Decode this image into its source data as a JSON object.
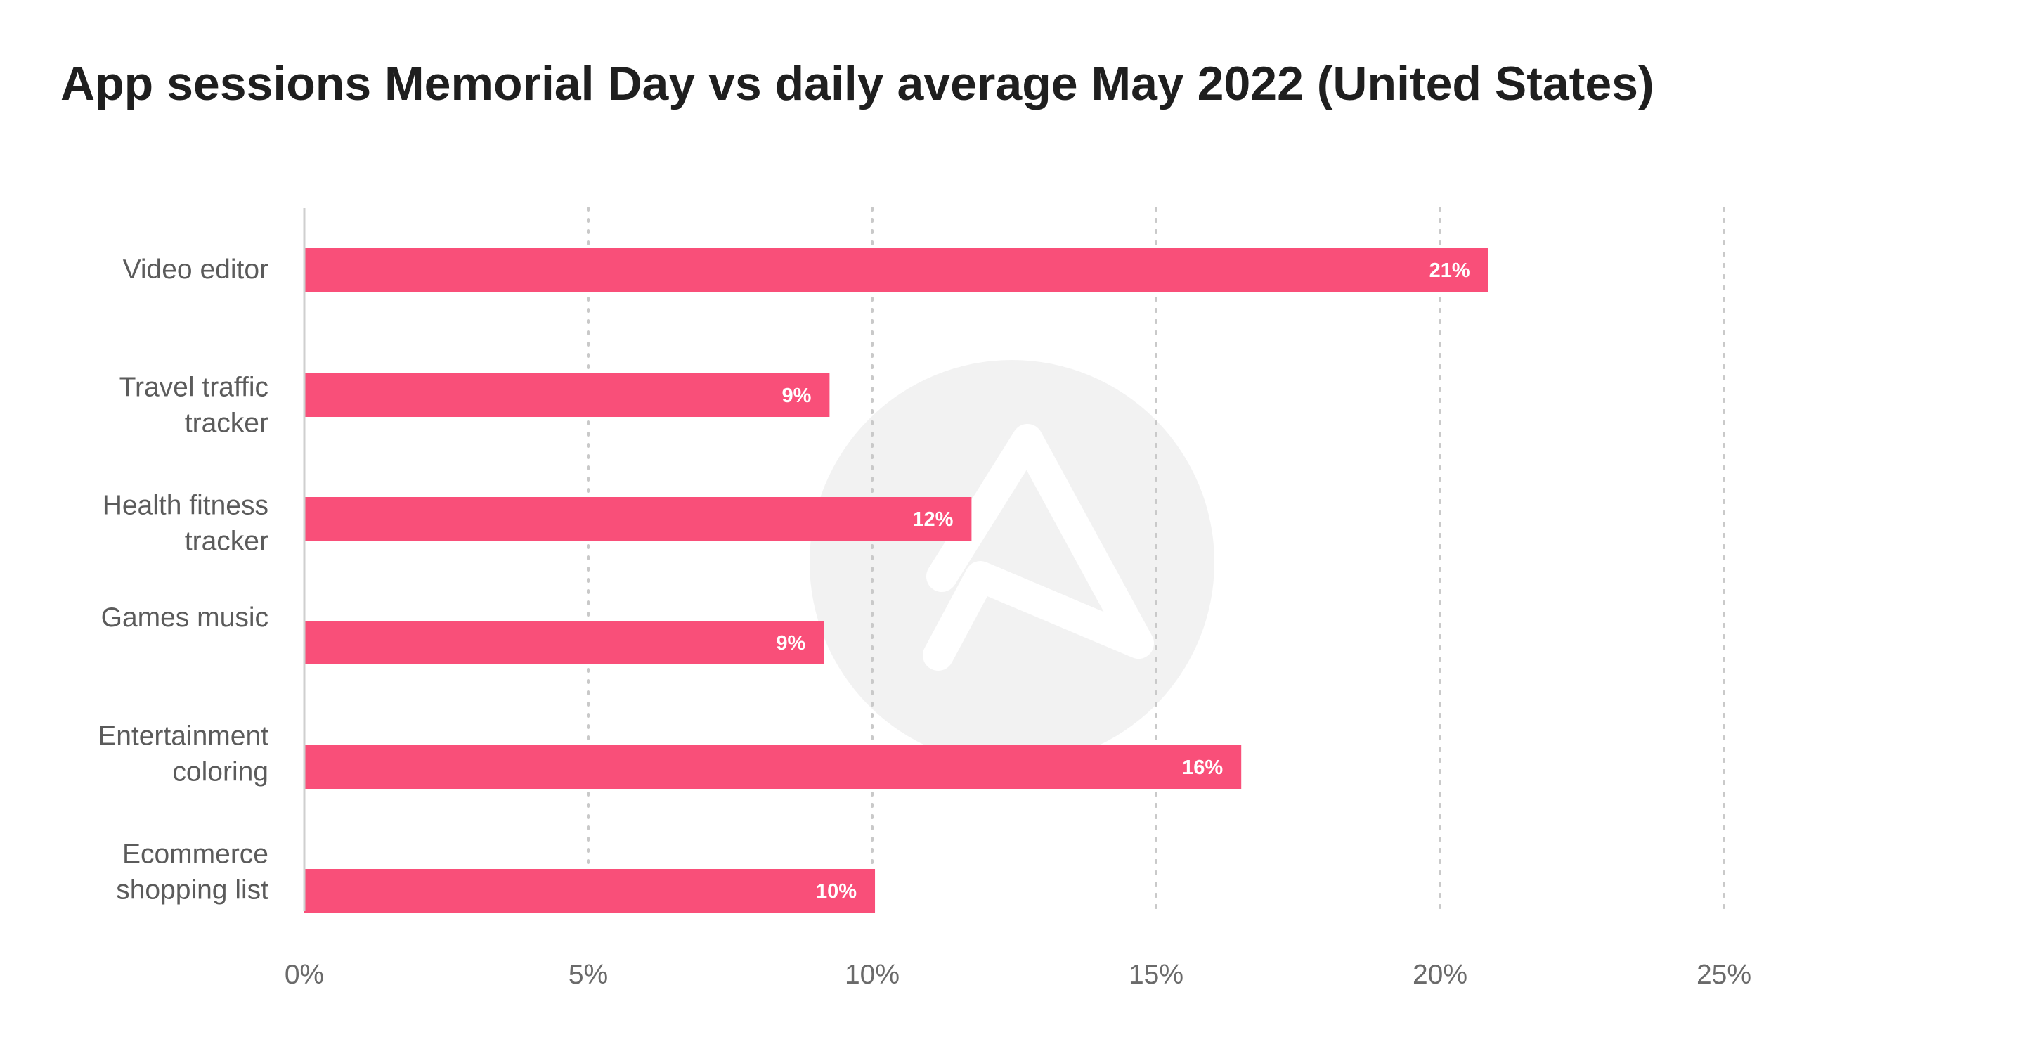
{
  "colors": {
    "bar": "#F94F79",
    "grid": "#C9C9C9",
    "axis": "#CFCFCF",
    "watermark": "#F2F2F2"
  },
  "watermark": {
    "icon": "adjust-logo-icon"
  },
  "chart_data": {
    "type": "bar",
    "orientation": "horizontal",
    "title": "App sessions Memorial Day vs daily average May 2022 (United States)",
    "categories": [
      [
        "Video editor"
      ],
      [
        "Travel traffic",
        "tracker"
      ],
      [
        "Health fitness",
        "tracker"
      ],
      [
        "Games music"
      ],
      [
        "Entertainment",
        "coloring"
      ],
      [
        "Ecommerce",
        "shopping list"
      ]
    ],
    "values": [
      20.85,
      9.25,
      11.75,
      9.15,
      16.5,
      10.05
    ],
    "data_labels": [
      "21%",
      "9%",
      "12%",
      "9%",
      "16%",
      "10%"
    ],
    "x_ticks": [
      0,
      5,
      10,
      15,
      20,
      25
    ],
    "x_tick_labels": [
      "0%",
      "5%",
      "10%",
      "15%",
      "20%",
      "25%"
    ],
    "xlim": [
      0,
      25
    ],
    "grid": "vertical dotted",
    "legend": "none"
  }
}
